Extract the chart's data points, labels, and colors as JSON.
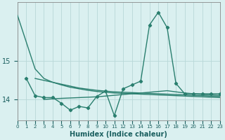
{
  "xlabel": "Humidex (Indice chaleur)",
  "x_values": [
    0,
    1,
    2,
    3,
    4,
    5,
    6,
    7,
    8,
    9,
    10,
    11,
    12,
    13,
    14,
    15,
    16,
    17,
    18,
    19,
    20,
    21,
    22,
    23
  ],
  "line1": [
    16.2,
    15.5,
    14.8,
    14.55,
    14.45,
    14.38,
    14.32,
    14.28,
    14.24,
    14.21,
    14.19,
    14.17,
    14.16,
    14.15,
    14.14,
    14.13,
    14.12,
    14.11,
    14.1,
    14.09,
    14.08,
    14.07,
    14.06,
    14.05
  ],
  "line2": [
    null,
    null,
    14.55,
    14.5,
    14.45,
    14.4,
    14.35,
    14.3,
    14.27,
    14.24,
    14.22,
    14.2,
    14.19,
    14.18,
    14.17,
    14.16,
    14.15,
    14.14,
    14.13,
    14.12,
    14.11,
    14.1,
    14.09,
    14.08
  ],
  "line3": [
    null,
    null,
    null,
    14.0,
    14.02,
    14.03,
    14.04,
    14.05,
    14.06,
    14.07,
    14.09,
    14.11,
    14.13,
    14.15,
    14.17,
    14.19,
    14.21,
    14.23,
    14.2,
    14.17,
    14.15,
    14.13,
    14.12,
    14.11
  ],
  "line4": [
    null,
    14.55,
    14.1,
    14.05,
    14.05,
    13.9,
    13.72,
    13.82,
    13.78,
    14.08,
    14.22,
    13.58,
    14.28,
    14.38,
    14.48,
    15.95,
    16.28,
    15.88,
    14.42,
    14.15,
    14.15,
    14.15,
    14.15,
    14.15
  ],
  "line_color": "#2a7f6f",
  "bg_color": "#daf0f0",
  "grid_color": "#b8d8d8",
  "yticks": [
    14,
    15
  ],
  "ylim": [
    13.45,
    16.55
  ],
  "xlim": [
    0,
    23
  ]
}
